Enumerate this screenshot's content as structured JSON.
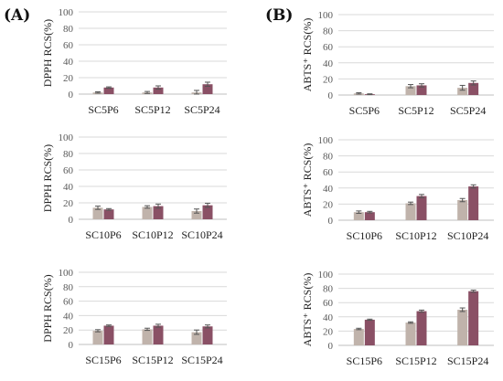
{
  "panel_labels": [
    "(A)",
    "(B)"
  ],
  "colors": {
    "series1": "#c0b3ab",
    "series2": "#8a5065"
  },
  "chart_data": [
    {
      "type": "bar",
      "panel": "(A)",
      "categories": [
        "SC5P6",
        "SC5P12",
        "SC5P24"
      ],
      "ylabel": "DPPH RCS(%)",
      "ylim": [
        0,
        100
      ],
      "yticks": [
        0,
        20,
        40,
        60,
        80,
        100
      ],
      "grid": true,
      "legend": "none",
      "series": [
        {
          "values": [
            2,
            2,
            2
          ],
          "errors": [
            0.8,
            1.2,
            2.5
          ]
        },
        {
          "values": [
            8,
            8,
            12
          ],
          "errors": [
            0.8,
            2,
            2.5
          ]
        }
      ]
    },
    {
      "type": "bar",
      "panel": "(A)",
      "categories": [
        "SC10P6",
        "SC10P12",
        "SC10P24"
      ],
      "ylabel": "DPPH RCS(%)",
      "ylim": [
        0,
        100
      ],
      "yticks": [
        0,
        20,
        40,
        60,
        80,
        100
      ],
      "grid": true,
      "legend": "none",
      "series": [
        {
          "values": [
            14,
            15,
            10
          ],
          "errors": [
            2,
            1.5,
            2.5
          ]
        },
        {
          "values": [
            12,
            16,
            17
          ],
          "errors": [
            1,
            2.5,
            2.5
          ]
        }
      ]
    },
    {
      "type": "bar",
      "panel": "(A)",
      "categories": [
        "SC15P6",
        "SC15P12",
        "SC15P24"
      ],
      "ylabel": "DPPH RCS(%)",
      "ylim": [
        0,
        100
      ],
      "yticks": [
        0,
        20,
        40,
        60,
        80,
        100
      ],
      "grid": true,
      "legend": "none",
      "series": [
        {
          "values": [
            19,
            21,
            17
          ],
          "errors": [
            1.5,
            1.5,
            3
          ]
        },
        {
          "values": [
            26,
            26,
            25
          ],
          "errors": [
            1,
            2,
            2
          ]
        }
      ]
    },
    {
      "type": "bar",
      "panel": "(B)",
      "categories": [
        "SC5P6",
        "SC5P12",
        "SC5P24"
      ],
      "ylabel": "ABTS⁺ RCS(%)",
      "ylim": [
        0,
        100
      ],
      "yticks": [
        0,
        20,
        40,
        60,
        80,
        100
      ],
      "grid": true,
      "legend": "none",
      "series": [
        {
          "values": [
            2,
            11,
            9
          ],
          "errors": [
            0.8,
            2,
            3
          ]
        },
        {
          "values": [
            1,
            12,
            15
          ],
          "errors": [
            0.5,
            2,
            2.5
          ]
        }
      ]
    },
    {
      "type": "bar",
      "panel": "(B)",
      "categories": [
        "SC10P6",
        "SC10P12",
        "SC10P24"
      ],
      "ylabel": "ABTS⁺ RCS(%)",
      "ylim": [
        0,
        100
      ],
      "yticks": [
        0,
        20,
        40,
        60,
        80,
        100
      ],
      "grid": true,
      "legend": "none",
      "series": [
        {
          "values": [
            10,
            21,
            25
          ],
          "errors": [
            1.5,
            1.5,
            2
          ]
        },
        {
          "values": [
            10,
            30,
            42
          ],
          "errors": [
            1,
            2,
            2
          ]
        }
      ]
    },
    {
      "type": "bar",
      "panel": "(B)",
      "categories": [
        "SC15P6",
        "SC15P12",
        "SC15P24"
      ],
      "ylabel": "ABTS⁺ RCS(%)",
      "ylim": [
        0,
        100
      ],
      "yticks": [
        0,
        20,
        40,
        60,
        80,
        100
      ],
      "grid": true,
      "legend": "none",
      "series": [
        {
          "values": [
            23,
            32,
            50
          ],
          "errors": [
            1,
            1,
            2.5
          ]
        },
        {
          "values": [
            36,
            48,
            76
          ],
          "errors": [
            0.8,
            1.5,
            1.5
          ]
        }
      ]
    }
  ]
}
